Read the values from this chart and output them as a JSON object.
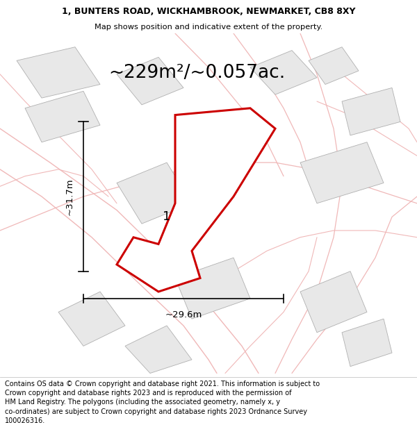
{
  "title_line1": "1, BUNTERS ROAD, WICKHAMBROOK, NEWMARKET, CB8 8XY",
  "title_line2": "Map shows position and indicative extent of the property.",
  "area_label": "~229m²/~0.057ac.",
  "dim_height": "~31.7m",
  "dim_width": "~29.6m",
  "plot_label": "1",
  "footer": "Contains OS data © Crown copyright and database right 2021. This information is subject to Crown copyright and database rights 2023 and is reproduced with the permission of HM Land Registry. The polygons (including the associated geometry, namely x, y co-ordinates) are subject to Crown copyright and database rights 2023 Ordnance Survey 100026316.",
  "bg_color": "#f8f5f5",
  "highlight_color": "#cc0000",
  "neighbor_color": "#e8e8e8",
  "neighbor_edge": "#b0b0b0",
  "road_color": "#f0b8b8",
  "title_fontsize": 9.0,
  "subtitle_fontsize": 8.2,
  "footer_fontsize": 7.0,
  "area_fontsize": 19,
  "dim_fontsize": 9.5,
  "label_fontsize": 13
}
